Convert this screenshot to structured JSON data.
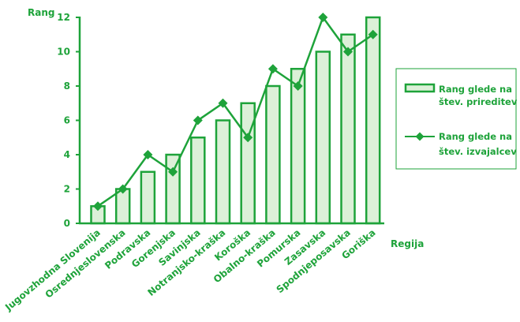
{
  "colors": {
    "accent": "#1ea33a",
    "bar_fill": "#dcf0d8",
    "background": "#ffffff"
  },
  "chart_data": {
    "type": "bar",
    "title": "",
    "ylabel": "Rang",
    "xlabel": "Regija",
    "ylim": [
      0,
      12
    ],
    "yticks": [
      0,
      2,
      4,
      6,
      8,
      10,
      12
    ],
    "grid": false,
    "legend_position": "right",
    "categories": [
      "Jugovzhodna Slovenija",
      "Osrednjeslovenska",
      "Podravska",
      "Gorenjska",
      "Savinjska",
      "Notranjsko-kraška",
      "Koroška",
      "Obalno-kraška",
      "Pomurska",
      "Zasavska",
      "Spodnjeposavska",
      "Goriška"
    ],
    "series": [
      {
        "name": "Rang glede na štev. prireditev",
        "legend_lines": [
          "Rang glede na",
          "štev. prireditev"
        ],
        "type": "bar",
        "values": [
          1,
          2,
          3,
          4,
          5,
          6,
          7,
          8,
          9,
          10,
          11,
          12
        ]
      },
      {
        "name": "Rang glede na štev. izvajalcev",
        "legend_lines": [
          "Rang glede na",
          "štev. izvajalcev"
        ],
        "type": "line",
        "marker": "diamond",
        "values": [
          1,
          2,
          4,
          3,
          6,
          7,
          5,
          9,
          8,
          12,
          10,
          11
        ]
      }
    ]
  }
}
